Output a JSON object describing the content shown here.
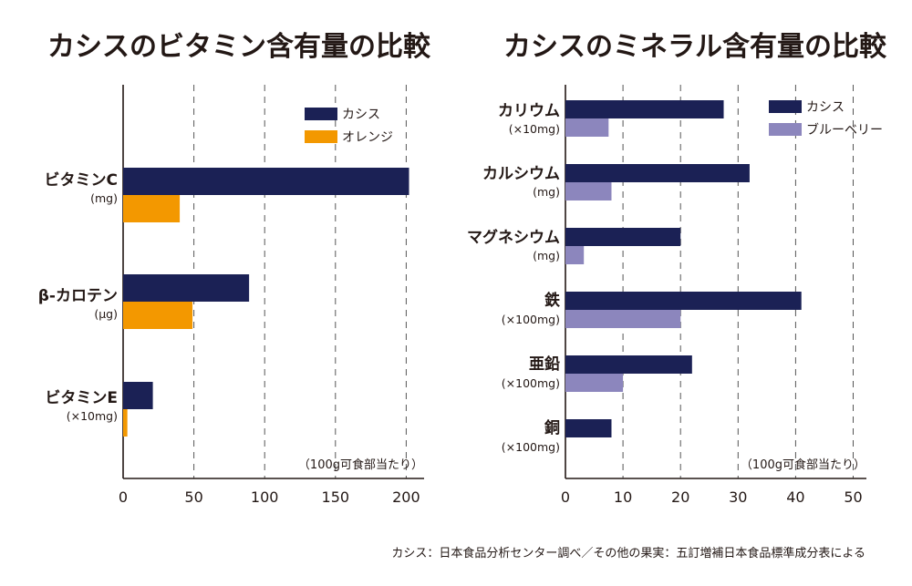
{
  "footnote": "カシス：日本食品分析センター調べ／その他の果実：五訂増補日本食品標準成分表による",
  "colors": {
    "blackcurrant": "#1b2155",
    "orange": "#f39800",
    "blueberry": "#8c86bd",
    "axis": "#231815",
    "grid": "#555555"
  },
  "chart_data": [
    {
      "type": "bar",
      "orientation": "horizontal",
      "title": "カシスのビタミン含有量の比較",
      "basis_note": "（100g可食部当たり）",
      "xlim": [
        0,
        210
      ],
      "xticks": [
        0,
        50,
        100,
        150,
        200
      ],
      "grid": true,
      "legend_position": "top-right",
      "categories": [
        {
          "name": "ビタミンC",
          "unit": "(mg)"
        },
        {
          "name": "β-カロテン",
          "unit": "(μg)"
        },
        {
          "name": "ビタミンE",
          "unit": "(×10mg)"
        }
      ],
      "series": [
        {
          "name": "カシス",
          "color": "#1b2155",
          "values": [
            202,
            89,
            21
          ]
        },
        {
          "name": "オレンジ",
          "color": "#f39800",
          "values": [
            40,
            49,
            3
          ]
        }
      ]
    },
    {
      "type": "bar",
      "orientation": "horizontal",
      "title": "カシスのミネラル含有量の比較",
      "basis_note": "（100g可食部当たり）",
      "xlim": [
        0,
        52
      ],
      "xticks": [
        0,
        10,
        20,
        30,
        40,
        50
      ],
      "grid": true,
      "legend_position": "top-right",
      "categories": [
        {
          "name": "カリウム",
          "unit": "(×10mg)"
        },
        {
          "name": "カルシウム",
          "unit": "(mg)"
        },
        {
          "name": "マグネシウム",
          "unit": "(mg)"
        },
        {
          "name": "鉄",
          "unit": "(×100mg)"
        },
        {
          "name": "亜鉛",
          "unit": "(×100mg)"
        },
        {
          "name": "銅",
          "unit": "(×100mg)"
        }
      ],
      "series": [
        {
          "name": "カシス",
          "color": "#1b2155",
          "values": [
            27.5,
            32,
            20,
            41,
            22,
            8
          ]
        },
        {
          "name": "ブルーベリー",
          "color": "#8c86bd",
          "values": [
            7.5,
            8,
            3.2,
            20,
            10,
            0
          ]
        }
      ]
    }
  ]
}
